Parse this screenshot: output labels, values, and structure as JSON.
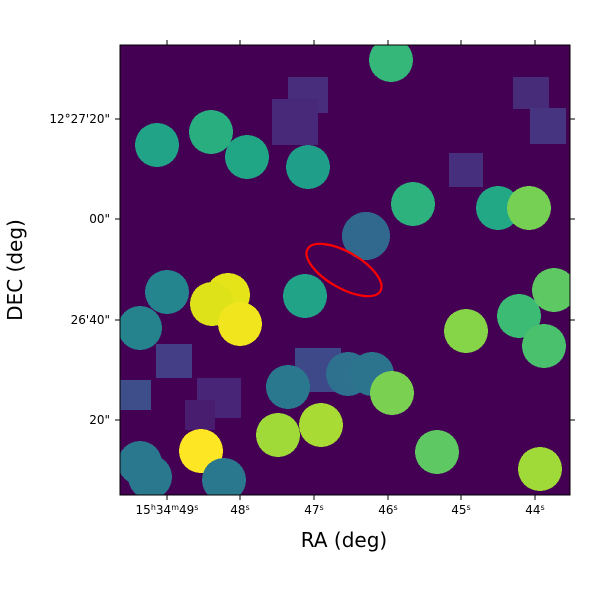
{
  "x_axis": {
    "label": "RA (deg)",
    "ticks": [
      [
        "15",
        "h",
        "34",
        "m",
        "49",
        "s"
      ],
      [
        "48",
        "s"
      ],
      [
        "47",
        "s"
      ],
      [
        "46",
        "s"
      ],
      [
        "45",
        "s"
      ],
      [
        "44",
        "s"
      ]
    ]
  },
  "y_axis": {
    "label": "DEC (deg)",
    "ticks": [
      "12°27'20\"",
      "00\"",
      "26'40\"",
      "20\""
    ]
  }
}
